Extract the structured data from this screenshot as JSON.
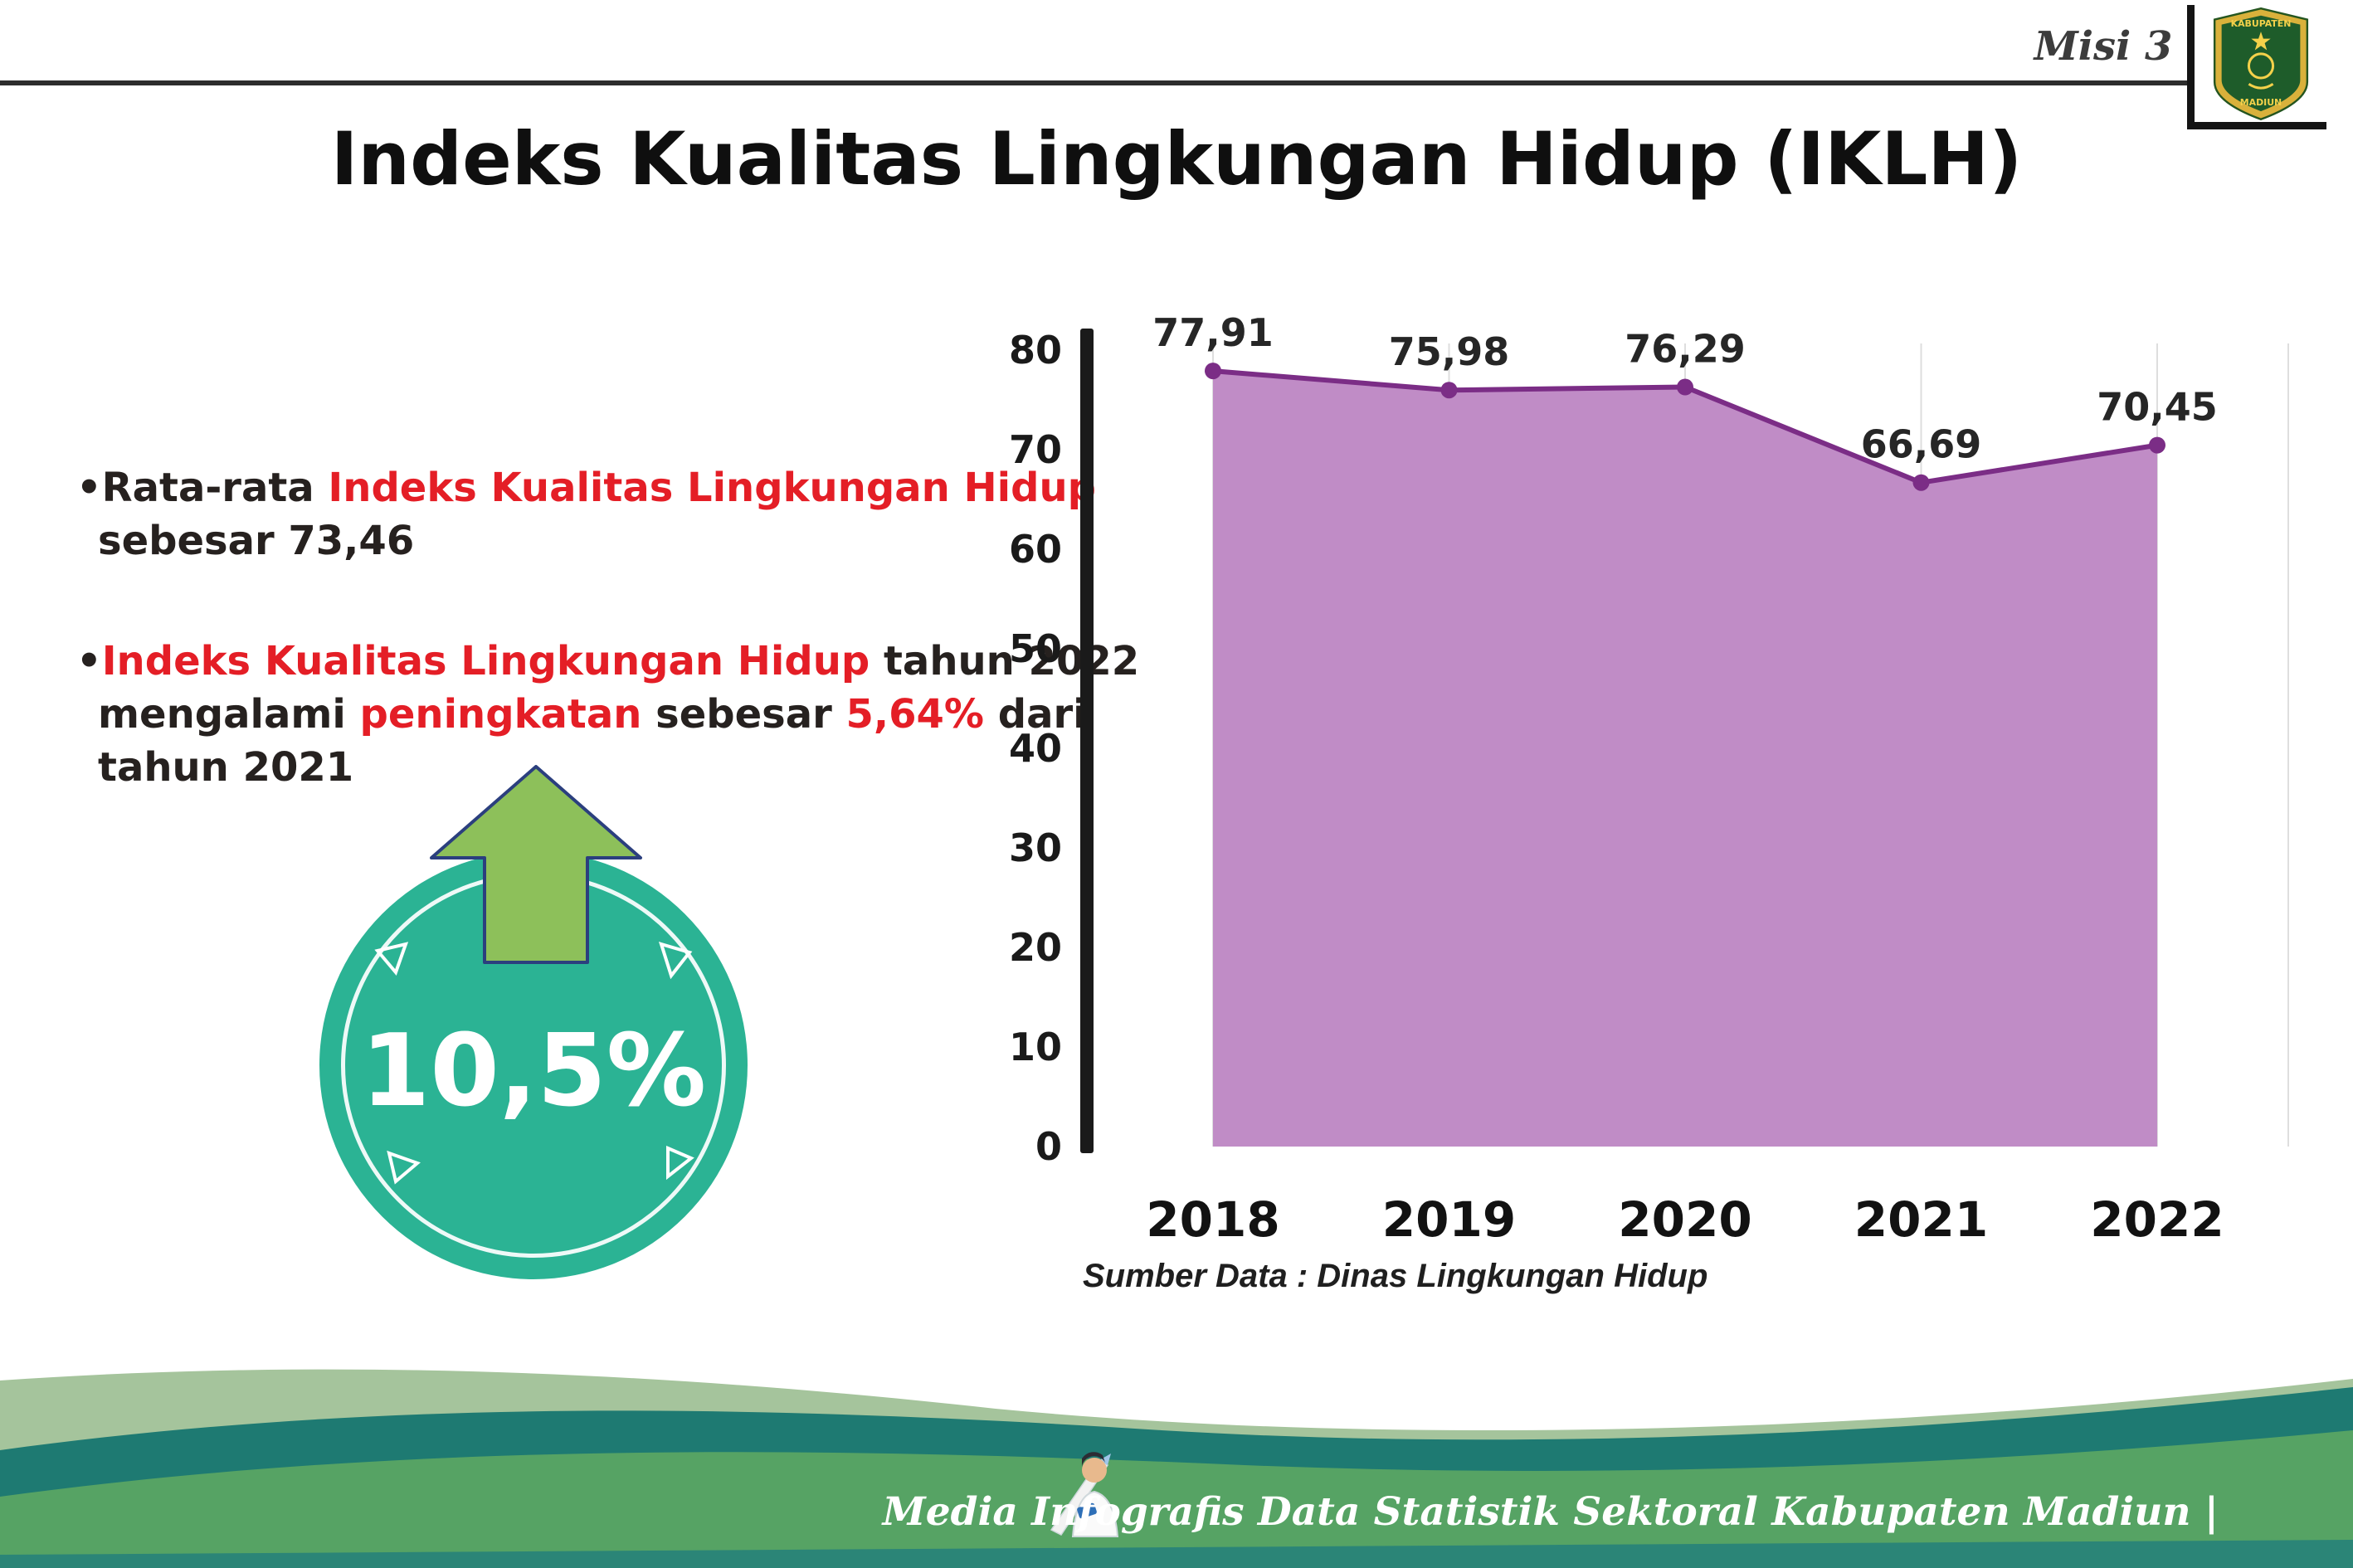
{
  "page": {
    "misi_label": "Misi 3",
    "title": "Indeks Kualitas Lingkungan Hidup (IKLH)"
  },
  "logo": {
    "top_text": "KABUPATEN",
    "bottom_text": "MADIUN"
  },
  "bullet_list": {
    "bullets": [
      {
        "segments": [
          {
            "text": "•Rata-rata ",
            "highlight": false
          },
          {
            "text": "Indeks Kualitas Lingkungan Hidup",
            "highlight": true
          },
          {
            "text": "\nsebesar 73,46",
            "highlight": false
          }
        ]
      },
      {
        "segments": [
          {
            "text": "•",
            "highlight": false
          },
          {
            "text": "Indeks Kualitas Lingkungan Hidup",
            "highlight": true
          },
          {
            "text": " tahun 2022\nmengalami ",
            "highlight": false
          },
          {
            "text": "peningkatan",
            "highlight": true
          },
          {
            "text": " sebesar ",
            "highlight": false
          },
          {
            "text": "5,64%",
            "highlight": true
          },
          {
            "text": " dari\ntahun 2021",
            "highlight": false
          }
        ]
      }
    ]
  },
  "badge": {
    "value": "10,5%"
  },
  "chart_data": {
    "type": "area",
    "title": "Indeks Kualitas Lingkungan Hidup (IKLH)",
    "categories": [
      "2018",
      "2019",
      "2020",
      "2021",
      "2022"
    ],
    "values": [
      77.91,
      75.98,
      76.29,
      66.69,
      70.45
    ],
    "value_labels": [
      "77,91",
      "75,98",
      "76,29",
      "66,69",
      "70,45"
    ],
    "xlabel": "",
    "ylabel": "",
    "ylim": [
      0,
      80
    ],
    "ytick_step": 10,
    "grid": "vertical",
    "legend": "none",
    "fill_color": "#c08cc6",
    "line_color": "#7b2d86",
    "source": "Sumber Data : Dinas Lingkungan Hidup"
  },
  "footer": {
    "caption": "Media Infografis Data Statistik Sektoral Kabupaten Madiun |"
  },
  "colors": {
    "accent_red": "#e41e26",
    "teal": "#2bb394",
    "arrow_green": "#8dc05a",
    "purple_fill": "#c08cc6",
    "purple_line": "#7b2d86",
    "footer_sage": "#a5c49c",
    "footer_teal": "#1e7a72",
    "footer_green": "#56a364",
    "footer_strip": "#2b8577"
  }
}
